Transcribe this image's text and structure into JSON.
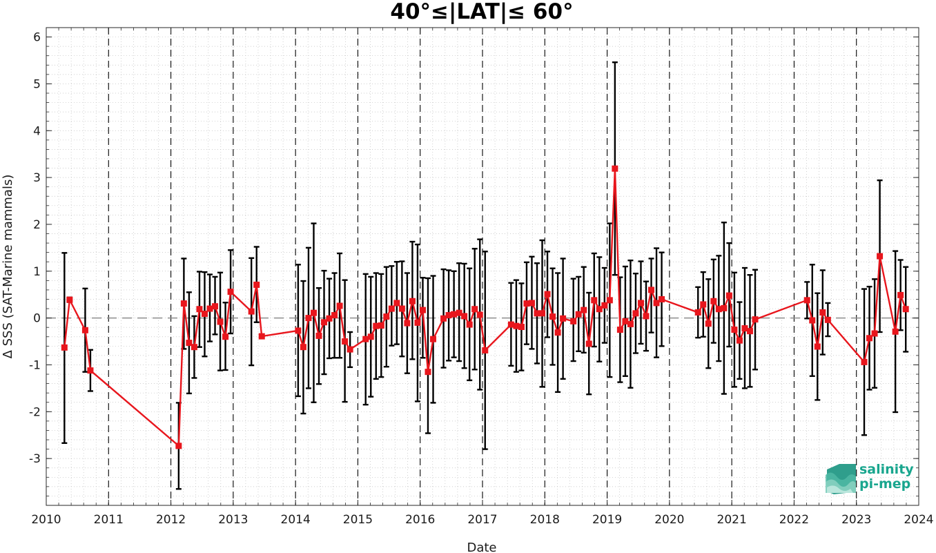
{
  "chart_data": {
    "type": "line",
    "title": "40°≤|LAT|≤ 60°",
    "xlabel": "Date",
    "ylabel": "Δ SSS (SAT-Marine mammals)",
    "xlim": [
      2010,
      2024
    ],
    "ylim": [
      -4,
      6.2
    ],
    "x_ticks": [
      "2010",
      "2011",
      "2012",
      "2013",
      "2014",
      "2015",
      "2016",
      "2017",
      "2018",
      "2019",
      "2020",
      "2021",
      "2022",
      "2023",
      "2024"
    ],
    "y_ticks": [
      "-3",
      "-2",
      "-1",
      "0",
      "1",
      "2",
      "3",
      "4",
      "5",
      "6"
    ],
    "grid": "dotted",
    "year_lines": "dashed vertical at each year",
    "zero_line": "dashed horizontal at 0",
    "colors": {
      "series": "#e8161d",
      "error_bars": "#000000",
      "zero_line": "#8c8c8c",
      "logo_text": "#19a68e"
    },
    "series": [
      {
        "marker": "square",
        "points": [
          {
            "x": "2010-04",
            "y": -0.63,
            "lo": -2.67,
            "hi": 1.39
          },
          {
            "x": "2010-05",
            "y": 0.39,
            "lo": 0.34,
            "hi": 0.44
          },
          {
            "x": "2010-08",
            "y": -0.26,
            "lo": -1.15,
            "hi": 0.63
          },
          {
            "x": "2010-09",
            "y": -1.12,
            "lo": -1.56,
            "hi": -0.68
          },
          {
            "x": "2012-02",
            "y": -2.73,
            "lo": -3.65,
            "hi": -1.81
          },
          {
            "x": "2012-03",
            "y": 0.31,
            "lo": -0.66,
            "hi": 1.27
          },
          {
            "x": "2012-04",
            "y": -0.53,
            "lo": -1.61,
            "hi": 0.55
          },
          {
            "x": "2012-05",
            "y": -0.62,
            "lo": -1.28,
            "hi": 0.04
          },
          {
            "x": "2012-06",
            "y": 0.19,
            "lo": -0.62,
            "hi": 0.99
          },
          {
            "x": "2012-07",
            "y": 0.09,
            "lo": -0.82,
            "hi": 0.98
          },
          {
            "x": "2012-08",
            "y": 0.2,
            "lo": -0.5,
            "hi": 0.93
          },
          {
            "x": "2012-09",
            "y": 0.25,
            "lo": -0.35,
            "hi": 0.88
          },
          {
            "x": "2012-10",
            "y": -0.08,
            "lo": -1.12,
            "hi": 0.97
          },
          {
            "x": "2012-11",
            "y": -0.4,
            "lo": -1.11,
            "hi": 0.33
          },
          {
            "x": "2012-12",
            "y": 0.56,
            "lo": -0.33,
            "hi": 1.45
          },
          {
            "x": "2013-04",
            "y": 0.14,
            "lo": -1.01,
            "hi": 1.28
          },
          {
            "x": "2013-05",
            "y": 0.71,
            "lo": -0.09,
            "hi": 1.52
          },
          {
            "x": "2013-06",
            "y": -0.39,
            "lo": -0.39,
            "hi": -0.39
          },
          {
            "x": "2014-01",
            "y": -0.27,
            "lo": -1.67,
            "hi": 1.14
          },
          {
            "x": "2014-02",
            "y": -0.62,
            "lo": -2.04,
            "hi": 0.79
          },
          {
            "x": "2014-03",
            "y": 0.0,
            "lo": -1.5,
            "hi": 1.5
          },
          {
            "x": "2014-04",
            "y": 0.11,
            "lo": -1.8,
            "hi": 2.02
          },
          {
            "x": "2014-05",
            "y": -0.38,
            "lo": -1.41,
            "hi": 0.64
          },
          {
            "x": "2014-06",
            "y": -0.09,
            "lo": -1.2,
            "hi": 1.01
          },
          {
            "x": "2014-07",
            "y": -0.01,
            "lo": -0.86,
            "hi": 0.84
          },
          {
            "x": "2014-08",
            "y": 0.06,
            "lo": -0.85,
            "hi": 0.96
          },
          {
            "x": "2014-09",
            "y": 0.26,
            "lo": -0.85,
            "hi": 1.38
          },
          {
            "x": "2014-10",
            "y": -0.5,
            "lo": -1.79,
            "hi": 0.81
          },
          {
            "x": "2014-11",
            "y": -0.67,
            "lo": -1.05,
            "hi": -0.3
          },
          {
            "x": "2015-02",
            "y": -0.45,
            "lo": -1.85,
            "hi": 0.94
          },
          {
            "x": "2015-03",
            "y": -0.4,
            "lo": -1.68,
            "hi": 0.88
          },
          {
            "x": "2015-04",
            "y": -0.17,
            "lo": -1.3,
            "hi": 0.96
          },
          {
            "x": "2015-05",
            "y": -0.16,
            "lo": -1.26,
            "hi": 0.94
          },
          {
            "x": "2015-06",
            "y": 0.03,
            "lo": -1.04,
            "hi": 1.09
          },
          {
            "x": "2015-07",
            "y": 0.2,
            "lo": -0.59,
            "hi": 1.11
          },
          {
            "x": "2015-08",
            "y": 0.32,
            "lo": -0.56,
            "hi": 1.2
          },
          {
            "x": "2015-09",
            "y": 0.2,
            "lo": -0.82,
            "hi": 1.21
          },
          {
            "x": "2015-10",
            "y": -0.11,
            "lo": -1.18,
            "hi": 0.96
          },
          {
            "x": "2015-11",
            "y": 0.36,
            "lo": -0.88,
            "hi": 1.63
          },
          {
            "x": "2015-12",
            "y": -0.1,
            "lo": -1.78,
            "hi": 1.57
          },
          {
            "x": "2016-01",
            "y": 0.17,
            "lo": -0.85,
            "hi": 0.86
          },
          {
            "x": "2016-02",
            "y": -1.15,
            "lo": -2.46,
            "hi": 0.85
          },
          {
            "x": "2016-03",
            "y": -0.45,
            "lo": -1.81,
            "hi": 0.9
          },
          {
            "x": "2016-05",
            "y": -0.01,
            "lo": -1.06,
            "hi": 1.04
          },
          {
            "x": "2016-06",
            "y": 0.06,
            "lo": -0.91,
            "hi": 1.02
          },
          {
            "x": "2016-07",
            "y": 0.08,
            "lo": -0.84,
            "hi": 1.0
          },
          {
            "x": "2016-08",
            "y": 0.11,
            "lo": -0.92,
            "hi": 1.17
          },
          {
            "x": "2016-09",
            "y": 0.04,
            "lo": -1.07,
            "hi": 1.16
          },
          {
            "x": "2016-10",
            "y": -0.14,
            "lo": -1.33,
            "hi": 1.06
          },
          {
            "x": "2016-11",
            "y": 0.19,
            "lo": -1.1,
            "hi": 1.48
          },
          {
            "x": "2016-12",
            "y": 0.07,
            "lo": -1.53,
            "hi": 1.68
          },
          {
            "x": "2017-01",
            "y": -0.69,
            "lo": -2.8,
            "hi": 1.42
          },
          {
            "x": "2017-06",
            "y": -0.14,
            "lo": -1.02,
            "hi": 0.75
          },
          {
            "x": "2017-07",
            "y": -0.17,
            "lo": -1.15,
            "hi": 0.81
          },
          {
            "x": "2017-08",
            "y": -0.19,
            "lo": -1.12,
            "hi": 0.74
          },
          {
            "x": "2017-09",
            "y": 0.31,
            "lo": -0.56,
            "hi": 1.19
          },
          {
            "x": "2017-10",
            "y": 0.32,
            "lo": -0.66,
            "hi": 1.31
          },
          {
            "x": "2017-11",
            "y": 0.1,
            "lo": -0.97,
            "hi": 1.17
          },
          {
            "x": "2017-12",
            "y": 0.1,
            "lo": -1.47,
            "hi": 1.66
          },
          {
            "x": "2018-01",
            "y": 0.51,
            "lo": -0.41,
            "hi": 1.42
          },
          {
            "x": "2018-02",
            "y": 0.03,
            "lo": -1.0,
            "hi": 1.06
          },
          {
            "x": "2018-03",
            "y": -0.31,
            "lo": -1.58,
            "hi": 0.96
          },
          {
            "x": "2018-04",
            "y": -0.01,
            "lo": -1.3,
            "hi": 1.27
          },
          {
            "x": "2018-06",
            "y": -0.07,
            "lo": -0.92,
            "hi": 0.84
          },
          {
            "x": "2018-07",
            "y": 0.08,
            "lo": -0.71,
            "hi": 0.88
          },
          {
            "x": "2018-08",
            "y": 0.17,
            "lo": -0.74,
            "hi": 1.09
          },
          {
            "x": "2018-09",
            "y": -0.55,
            "lo": -1.63,
            "hi": 0.54
          },
          {
            "x": "2018-10",
            "y": 0.38,
            "lo": -0.61,
            "hi": 1.38
          },
          {
            "x": "2018-11",
            "y": 0.19,
            "lo": -0.93,
            "hi": 1.3
          },
          {
            "x": "2018-12",
            "y": 0.27,
            "lo": -0.53,
            "hi": 1.07
          },
          {
            "x": "2019-01",
            "y": 0.38,
            "lo": -1.26,
            "hi": 2.02
          },
          {
            "x": "2019-02",
            "y": 3.19,
            "lo": 0.92,
            "hi": 5.46
          },
          {
            "x": "2019-03",
            "y": -0.25,
            "lo": -1.37,
            "hi": 0.87
          },
          {
            "x": "2019-04",
            "y": -0.07,
            "lo": -1.24,
            "hi": 1.1
          },
          {
            "x": "2019-05",
            "y": -0.13,
            "lo": -1.49,
            "hi": 1.23
          },
          {
            "x": "2019-06",
            "y": 0.1,
            "lo": -0.75,
            "hi": 0.95
          },
          {
            "x": "2019-07",
            "y": 0.32,
            "lo": -0.55,
            "hi": 1.21
          },
          {
            "x": "2019-08",
            "y": 0.04,
            "lo": -0.7,
            "hi": 0.78
          },
          {
            "x": "2019-09",
            "y": 0.6,
            "lo": -0.31,
            "hi": 1.27
          },
          {
            "x": "2019-10",
            "y": 0.32,
            "lo": -0.84,
            "hi": 1.49
          },
          {
            "x": "2019-11",
            "y": 0.4,
            "lo": -0.6,
            "hi": 1.4
          },
          {
            "x": "2020-06",
            "y": 0.12,
            "lo": -0.42,
            "hi": 0.66
          },
          {
            "x": "2020-07",
            "y": 0.29,
            "lo": -0.4,
            "hi": 0.98
          },
          {
            "x": "2020-08",
            "y": -0.12,
            "lo": -1.07,
            "hi": 0.83
          },
          {
            "x": "2020-09",
            "y": 0.36,
            "lo": -0.53,
            "hi": 1.25
          },
          {
            "x": "2020-10",
            "y": 0.19,
            "lo": -0.92,
            "hi": 1.33
          },
          {
            "x": "2020-11",
            "y": 0.21,
            "lo": -1.62,
            "hi": 2.04
          },
          {
            "x": "2020-12",
            "y": 0.48,
            "lo": -0.61,
            "hi": 1.6
          },
          {
            "x": "2021-01",
            "y": -0.25,
            "lo": -1.47,
            "hi": 0.97
          },
          {
            "x": "2021-02",
            "y": -0.48,
            "lo": -1.3,
            "hi": 0.34
          },
          {
            "x": "2021-03",
            "y": -0.22,
            "lo": -1.5,
            "hi": 1.07
          },
          {
            "x": "2021-04",
            "y": -0.28,
            "lo": -1.47,
            "hi": 0.92
          },
          {
            "x": "2021-05",
            "y": -0.03,
            "lo": -1.1,
            "hi": 1.03
          },
          {
            "x": "2022-03",
            "y": 0.38,
            "lo": -0.01,
            "hi": 0.77
          },
          {
            "x": "2022-04",
            "y": -0.05,
            "lo": -1.24,
            "hi": 1.14
          },
          {
            "x": "2022-05",
            "y": -0.61,
            "lo": -1.75,
            "hi": 0.53
          },
          {
            "x": "2022-06",
            "y": 0.12,
            "lo": -0.78,
            "hi": 1.02
          },
          {
            "x": "2022-07",
            "y": -0.04,
            "lo": -0.39,
            "hi": 0.32
          },
          {
            "x": "2023-02",
            "y": -0.94,
            "lo": -2.5,
            "hi": 0.62
          },
          {
            "x": "2023-03",
            "y": -0.43,
            "lo": -1.53,
            "hi": 0.67
          },
          {
            "x": "2023-04",
            "y": -0.33,
            "lo": -1.49,
            "hi": 0.83
          },
          {
            "x": "2023-05",
            "y": 1.32,
            "lo": -0.3,
            "hi": 2.94
          },
          {
            "x": "2023-08",
            "y": -0.29,
            "lo": -2.01,
            "hi": 1.43
          },
          {
            "x": "2023-09",
            "y": 0.49,
            "lo": -0.26,
            "hi": 1.24
          },
          {
            "x": "2023-10",
            "y": 0.19,
            "lo": -0.72,
            "hi": 1.09
          }
        ]
      }
    ]
  },
  "logo": {
    "line1": "salinity",
    "line2": "pi-mep"
  }
}
